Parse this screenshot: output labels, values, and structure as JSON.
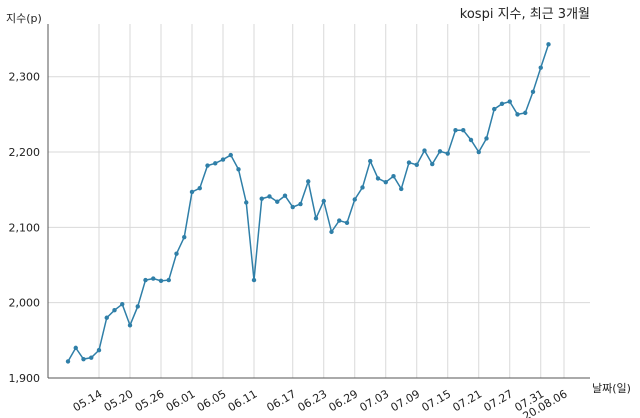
{
  "chart_data": {
    "type": "line",
    "title": "kospi 지수, 최근 3개월",
    "ylabel": "지수(p)",
    "xlabel": "날짜(일)",
    "ylim": [
      1900,
      2370
    ],
    "yticks": [
      1900,
      2000,
      2100,
      2200,
      2300
    ],
    "ytick_labels": [
      "1,900",
      "2,000",
      "2,100",
      "2,200",
      "2,300"
    ],
    "xtick_labels": [
      "05.14",
      "05.20",
      "05.26",
      "06.01",
      "06.05",
      "06.11",
      "06.17",
      "06.23",
      "06.29",
      "07.03",
      "07.09",
      "07.15",
      "07.21",
      "07.27",
      "07.31",
      "20.08.06"
    ],
    "xtick_index": [
      4,
      8,
      12,
      16,
      20,
      24,
      29,
      33,
      37,
      41,
      45,
      49,
      53,
      57,
      61,
      64
    ],
    "grid": true,
    "series": [
      {
        "values": [
          1922,
          1940,
          1925,
          1927,
          1937,
          1980,
          1990,
          1998,
          1970,
          1995,
          2030,
          2032,
          2029,
          2030,
          2065,
          2087,
          2147,
          2152,
          2182,
          2185,
          2190,
          2196,
          2177,
          2133,
          2030,
          2138,
          2141,
          2134,
          2142,
          2127,
          2131,
          2161,
          2112,
          2135,
          2094,
          2109,
          2106,
          2137,
          2153,
          2188,
          2165,
          2160,
          2168,
          2151,
          2186,
          2183,
          2202,
          2184,
          2201,
          2198,
          2229,
          2229,
          2216,
          2200,
          2218,
          2257,
          2264,
          2267,
          2250,
          2252,
          2280,
          2312,
          2343
        ]
      }
    ]
  }
}
